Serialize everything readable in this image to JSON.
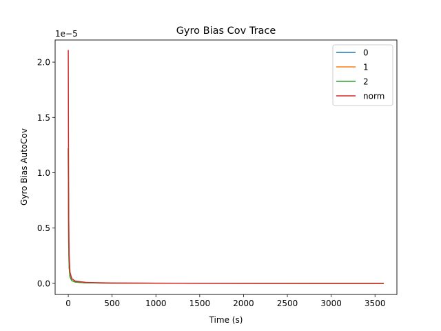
{
  "chart_data": {
    "type": "line",
    "title": "Gyro Bias Cov Trace",
    "xlabel": "Time (s)",
    "ylabel": "Gyro Bias AutoCov",
    "y_offset_label": "1e−5",
    "y_scale_exponent": -5,
    "xlim": [
      -150,
      3750
    ],
    "ylim": [
      -0.1,
      2.2
    ],
    "x_ticks": [
      0,
      500,
      1000,
      1500,
      2000,
      2500,
      3000,
      3500
    ],
    "x_tick_labels": [
      "0",
      "500",
      "1000",
      "1500",
      "2000",
      "2500",
      "3000",
      "3500"
    ],
    "y_ticks": [
      0.0,
      0.5,
      1.0,
      1.5,
      2.0
    ],
    "y_tick_labels": [
      "0.0",
      "0.5",
      "1.0",
      "1.5",
      "2.0"
    ],
    "grid": false,
    "legend_position": "top-right",
    "series": [
      {
        "name": "0",
        "color": "#1f77b4",
        "points": [
          [
            0,
            1.22
          ],
          [
            2,
            0.8
          ],
          [
            5,
            0.35
          ],
          [
            10,
            0.15
          ],
          [
            20,
            0.06
          ],
          [
            40,
            0.025
          ],
          [
            80,
            0.012
          ],
          [
            200,
            0.005
          ],
          [
            500,
            0.002
          ],
          [
            1000,
            0.001
          ],
          [
            3600,
            0.0003
          ]
        ]
      },
      {
        "name": "1",
        "color": "#ff7f0e",
        "points": [
          [
            0,
            1.22
          ],
          [
            2,
            0.8
          ],
          [
            5,
            0.35
          ],
          [
            10,
            0.15
          ],
          [
            20,
            0.06
          ],
          [
            40,
            0.025
          ],
          [
            80,
            0.012
          ],
          [
            200,
            0.005
          ],
          [
            500,
            0.002
          ],
          [
            1000,
            0.001
          ],
          [
            3600,
            0.0003
          ]
        ]
      },
      {
        "name": "2",
        "color": "#2ca02c",
        "points": [
          [
            0,
            1.22
          ],
          [
            2,
            0.8
          ],
          [
            5,
            0.35
          ],
          [
            10,
            0.15
          ],
          [
            20,
            0.06
          ],
          [
            40,
            0.025
          ],
          [
            80,
            0.012
          ],
          [
            200,
            0.005
          ],
          [
            500,
            0.002
          ],
          [
            1000,
            0.001
          ],
          [
            3600,
            0.0003
          ]
        ]
      },
      {
        "name": "norm",
        "color": "#d62728",
        "points": [
          [
            0,
            2.11
          ],
          [
            2,
            1.38
          ],
          [
            5,
            0.6
          ],
          [
            10,
            0.26
          ],
          [
            20,
            0.1
          ],
          [
            40,
            0.043
          ],
          [
            80,
            0.021
          ],
          [
            200,
            0.009
          ],
          [
            500,
            0.0035
          ],
          [
            1000,
            0.0017
          ],
          [
            3600,
            0.0005
          ]
        ]
      }
    ]
  }
}
